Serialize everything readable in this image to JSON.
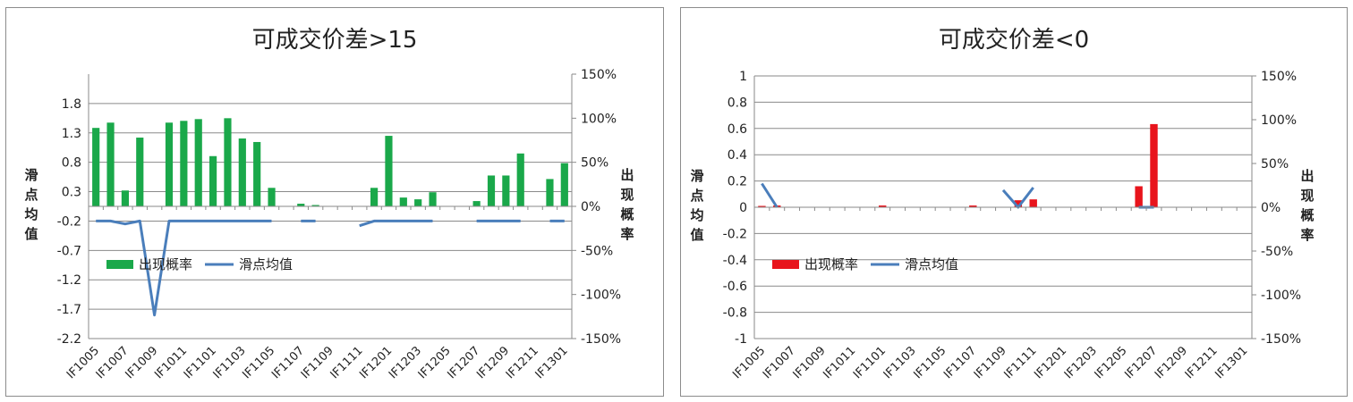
{
  "chart_data": [
    {
      "type": "bar",
      "title": "可成交价差>15",
      "ylabel": "滑点均值",
      "y2label": "出现概率",
      "y_ticks": [
        "1.8",
        "1.3",
        "0.8",
        "0.3",
        "-0.2",
        "-0.7",
        "-1.2",
        "-1.7",
        "-2.2"
      ],
      "y2_ticks": [
        "150%",
        "100%",
        "50%",
        "0%",
        "-50%",
        "-100%",
        "-150%"
      ],
      "ylim": [
        -2.2,
        2.3
      ],
      "y2lim": [
        -1.5,
        1.5
      ],
      "x_tick_labels": [
        "IF1005",
        "IF1007",
        "IF1009",
        "IF1011",
        "IF1101",
        "IF1103",
        "IF1105",
        "IF1107",
        "IF1109",
        "IF1111",
        "IF1201",
        "IF1203",
        "IF1205",
        "IF1207",
        "IF1209",
        "IF1211",
        "IF1301"
      ],
      "categories": [
        "IF1005",
        "IF1006",
        "IF1007",
        "IF1008",
        "IF1009",
        "IF1010",
        "IF1011",
        "IF1012",
        "IF1101",
        "IF1102",
        "IF1103",
        "IF1104",
        "IF1105",
        "IF1106",
        "IF1107",
        "IF1108",
        "IF1109",
        "IF1110",
        "IF1111",
        "IF1112",
        "IF1201",
        "IF1202",
        "IF1203",
        "IF1204",
        "IF1205",
        "IF1206",
        "IF1207",
        "IF1208",
        "IF1209",
        "IF1210",
        "IF1211",
        "IF1212",
        "IF1301"
      ],
      "legend": "bottom-left",
      "bar_color": "#1aa84a",
      "line_color": "#4a7ebb",
      "series": [
        {
          "name": "出现概率",
          "axis": "right",
          "type": "bar",
          "values": [
            0.89,
            0.95,
            0.18,
            0.78,
            null,
            0.95,
            0.97,
            0.99,
            0.57,
            1.0,
            0.77,
            0.73,
            0.21,
            null,
            0.03,
            0.0,
            null,
            null,
            null,
            0.21,
            0.8,
            0.1,
            0.08,
            0.16,
            null,
            null,
            0.06,
            0.35,
            0.35,
            0.6,
            null,
            0.31,
            0.49
          ]
        },
        {
          "name": "滑点均值",
          "axis": "left",
          "type": "line",
          "values": [
            -0.2,
            -0.2,
            -0.25,
            -0.2,
            -1.8,
            -0.2,
            -0.2,
            -0.2,
            -0.2,
            -0.2,
            -0.2,
            -0.2,
            -0.2,
            null,
            -0.2,
            -0.2,
            null,
            null,
            -0.28,
            -0.2,
            -0.2,
            -0.2,
            -0.2,
            -0.2,
            null,
            null,
            -0.2,
            -0.2,
            -0.2,
            -0.2,
            null,
            -0.2,
            -0.2
          ]
        }
      ]
    },
    {
      "type": "bar",
      "title": "可成交价差<0",
      "ylabel": "滑点均值",
      "y2label": "出现概率",
      "y_ticks": [
        "1",
        "0.8",
        "0.6",
        "0.4",
        "0.2",
        "0",
        "-0.2",
        "-0.4",
        "-0.6",
        "-0.8",
        "-1"
      ],
      "y2_ticks": [
        "150%",
        "100%",
        "50%",
        "0%",
        "-50%",
        "-100%",
        "-150%"
      ],
      "ylim": [
        -1,
        1
      ],
      "y2lim": [
        -1.5,
        1.5
      ],
      "x_tick_labels": [
        "IF1005",
        "IF1007",
        "IF1009",
        "IF1011",
        "IF1101",
        "IF1103",
        "IF1105",
        "IF1107",
        "IF1109",
        "IF1111",
        "IF1201",
        "IF1203",
        "IF1205",
        "IF1207",
        "IF1209",
        "IF1211",
        "IF1301"
      ],
      "categories": [
        "IF1005",
        "IF1006",
        "IF1007",
        "IF1008",
        "IF1009",
        "IF1010",
        "IF1011",
        "IF1012",
        "IF1101",
        "IF1102",
        "IF1103",
        "IF1104",
        "IF1105",
        "IF1106",
        "IF1107",
        "IF1108",
        "IF1109",
        "IF1110",
        "IF1111",
        "IF1112",
        "IF1201",
        "IF1202",
        "IF1203",
        "IF1204",
        "IF1205",
        "IF1206",
        "IF1207",
        "IF1208",
        "IF1209",
        "IF1210",
        "IF1211",
        "IF1212",
        "IF1301"
      ],
      "legend": "bottom-left",
      "bar_color": "#e8141c",
      "line_color": "#4a7ebb",
      "series": [
        {
          "name": "出现概率",
          "axis": "right",
          "type": "bar",
          "values": [
            0.01,
            0.02,
            null,
            null,
            null,
            null,
            null,
            null,
            0.02,
            null,
            null,
            null,
            null,
            null,
            0.02,
            null,
            null,
            0.08,
            0.09,
            null,
            null,
            null,
            null,
            null,
            null,
            0.24,
            0.95,
            null,
            null,
            null,
            null,
            null,
            null
          ]
        },
        {
          "name": "滑点均值",
          "axis": "left",
          "type": "line",
          "values": [
            0.18,
            0,
            null,
            null,
            null,
            null,
            null,
            null,
            null,
            null,
            null,
            null,
            null,
            null,
            null,
            null,
            0.13,
            0,
            0.15,
            null,
            null,
            null,
            null,
            null,
            null,
            0,
            0,
            null,
            null,
            null,
            null,
            null,
            null
          ]
        }
      ]
    }
  ]
}
